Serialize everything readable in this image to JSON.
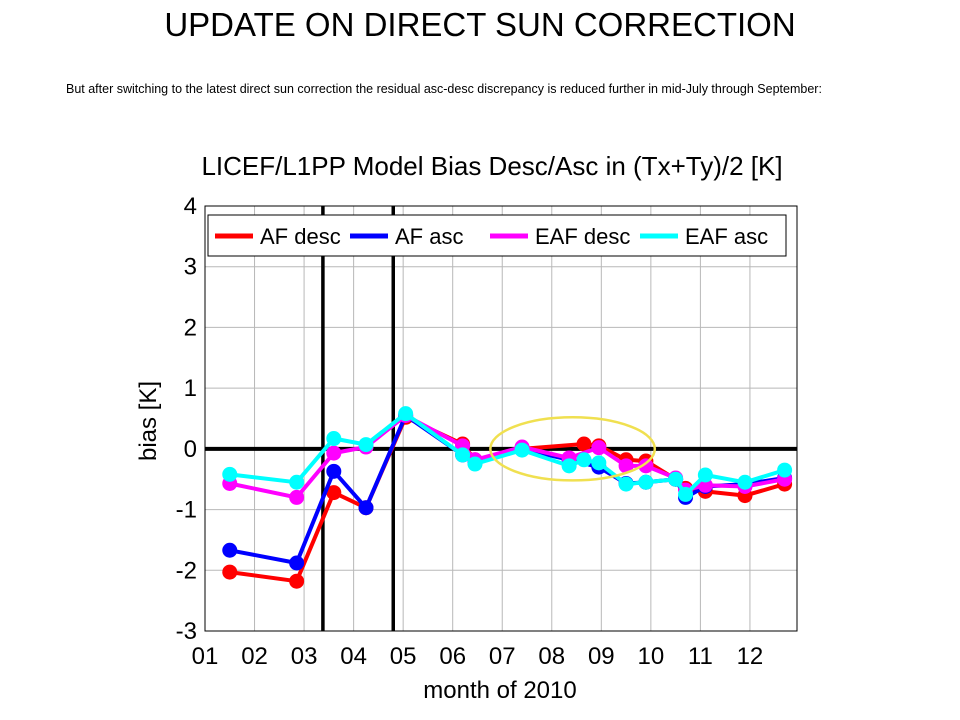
{
  "slide": {
    "title": "UPDATE ON DIRECT SUN CORRECTION",
    "body": "But after switching to the latest direct sun correction the residual asc-desc discrepancy is reduced further in mid-July through September:"
  },
  "chart_data": {
    "type": "line",
    "title": "LICEF/L1PP Model Bias Desc/Asc in (Tx+Ty)/2 [K]",
    "xlabel": "month of 2010",
    "ylabel": "bias [K]",
    "xlim": [
      1,
      12.95
    ],
    "ylim": [
      -3,
      4
    ],
    "x_ticks": [
      1,
      2,
      3,
      4,
      5,
      6,
      7,
      8,
      9,
      10,
      11,
      12
    ],
    "x_tick_labels": [
      "01",
      "02",
      "03",
      "04",
      "05",
      "06",
      "07",
      "08",
      "09",
      "10",
      "11",
      "12"
    ],
    "y_ticks": [
      -3,
      -2,
      -1,
      0,
      1,
      2,
      3,
      4
    ],
    "y_tick_labels": [
      "-3",
      "-2",
      "-1",
      "0",
      "1",
      "2",
      "3",
      "4"
    ],
    "grid": true,
    "legend_position": "top",
    "vertical_lines": [
      3.38,
      4.8
    ],
    "zero_line": 0,
    "highlight_ellipse": {
      "center_x": 8.42,
      "center_y": 0.0,
      "radius_x": 1.66,
      "radius_y": 0.52,
      "color": "#f0e050"
    },
    "series": [
      {
        "name": "AF desc",
        "color": "#ff0000",
        "x": [
          1.5,
          2.85,
          3.6,
          4.25,
          5.05,
          6.2,
          6.45,
          7.4,
          8.65,
          8.95,
          9.5,
          9.9,
          10.5,
          10.7,
          11.1,
          11.9,
          12.7
        ],
        "y": [
          -2.03,
          -2.18,
          -0.72,
          -0.97,
          0.52,
          0.08,
          -0.18,
          0.0,
          0.08,
          0.05,
          -0.18,
          -0.2,
          -0.5,
          -0.65,
          -0.7,
          -0.77,
          -0.58
        ]
      },
      {
        "name": "AF asc",
        "color": "#0000ff",
        "x": [
          1.5,
          2.85,
          3.6,
          4.25,
          5.05,
          6.2,
          6.45,
          7.4,
          8.35,
          8.95,
          9.5,
          9.9,
          10.5,
          10.7,
          11.1,
          11.9,
          12.7
        ],
        "y": [
          -1.67,
          -1.88,
          -0.37,
          -0.97,
          0.55,
          -0.1,
          -0.23,
          0.0,
          -0.18,
          -0.3,
          -0.57,
          -0.55,
          -0.5,
          -0.8,
          -0.62,
          -0.58,
          -0.48
        ]
      },
      {
        "name": "EAF desc",
        "color": "#ff00ff",
        "x": [
          1.5,
          2.85,
          3.6,
          4.25,
          5.05,
          6.2,
          6.45,
          7.4,
          8.35,
          8.95,
          9.5,
          9.9,
          10.5,
          10.7,
          11.1,
          11.9,
          12.7
        ],
        "y": [
          -0.57,
          -0.8,
          -0.07,
          0.03,
          0.55,
          0.05,
          -0.18,
          0.03,
          -0.15,
          0.02,
          -0.28,
          -0.28,
          -0.48,
          -0.68,
          -0.6,
          -0.62,
          -0.5
        ]
      },
      {
        "name": "EAF asc",
        "color": "#00ffff",
        "x": [
          1.5,
          2.85,
          3.6,
          4.25,
          5.05,
          6.2,
          6.45,
          7.4,
          8.35,
          8.65,
          8.95,
          9.5,
          9.9,
          10.5,
          10.7,
          11.1,
          11.9,
          12.7
        ],
        "y": [
          -0.42,
          -0.55,
          0.17,
          0.07,
          0.58,
          -0.1,
          -0.25,
          -0.02,
          -0.28,
          -0.18,
          -0.23,
          -0.58,
          -0.55,
          -0.5,
          -0.75,
          -0.43,
          -0.55,
          -0.35
        ]
      }
    ]
  }
}
